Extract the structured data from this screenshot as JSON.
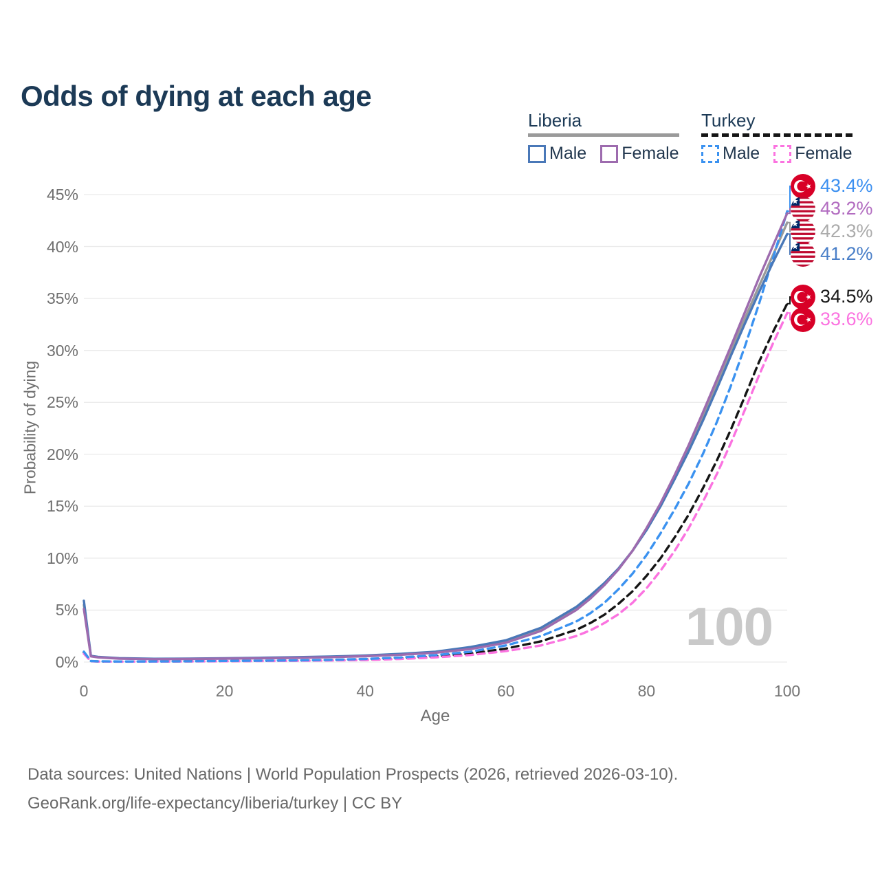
{
  "title": "Odds of dying at each age",
  "watermark": "100",
  "legend": {
    "groups": [
      {
        "name": "Liberia",
        "line_style": "solid",
        "underline_color": "#9a9a9a",
        "items": [
          {
            "label": "Male",
            "color": "#4a78b8"
          },
          {
            "label": "Female",
            "color": "#9d6bae"
          }
        ]
      },
      {
        "name": "Turkey",
        "line_style": "dashed",
        "underline_color": "#151515",
        "items": [
          {
            "label": "Male",
            "color": "#3b92f0"
          },
          {
            "label": "Female",
            "color": "#fb73e0"
          }
        ]
      }
    ]
  },
  "footer": {
    "line1": "Data sources: United Nations | World Population Prospects (2026, retrieved 2026-03-10).",
    "line2": "GeoRank.org/life-expectancy/liberia/turkey | CC BY"
  },
  "chart_data": {
    "type": "line",
    "title": "Odds of dying at each age",
    "xlabel": "Age",
    "ylabel": "Probability of dying",
    "xlim": [
      0,
      100
    ],
    "ylim": [
      0,
      45
    ],
    "grid": "horizontal",
    "legend_position": "top-right",
    "x_ticks": [
      {
        "v": 0,
        "label": "0"
      },
      {
        "v": 20,
        "label": "20"
      },
      {
        "v": 40,
        "label": "40"
      },
      {
        "v": 60,
        "label": "60"
      },
      {
        "v": 80,
        "label": "80"
      },
      {
        "v": 100,
        "label": "100"
      }
    ],
    "y_ticks": [
      {
        "v": 0,
        "label": "0%"
      },
      {
        "v": 5,
        "label": "5%"
      },
      {
        "v": 10,
        "label": "10%"
      },
      {
        "v": 15,
        "label": "15%"
      },
      {
        "v": 20,
        "label": "20%"
      },
      {
        "v": 25,
        "label": "25%"
      },
      {
        "v": 30,
        "label": "30%"
      },
      {
        "v": 35,
        "label": "35%"
      },
      {
        "v": 40,
        "label": "40%"
      },
      {
        "v": 45,
        "label": "45%"
      }
    ],
    "series": [
      {
        "id": "liberia-all",
        "country": "Liberia",
        "sex": "Both",
        "style": "solid",
        "color": "#9a9a9a",
        "label_color": "#ababab",
        "flag": "liberia-flag-icon",
        "end_label": "42.3%",
        "points": [
          [
            0,
            5.5
          ],
          [
            1,
            0.58
          ],
          [
            2,
            0.47
          ],
          [
            5,
            0.35
          ],
          [
            10,
            0.3
          ],
          [
            15,
            0.32
          ],
          [
            20,
            0.35
          ],
          [
            25,
            0.38
          ],
          [
            30,
            0.43
          ],
          [
            35,
            0.5
          ],
          [
            40,
            0.6
          ],
          [
            45,
            0.74
          ],
          [
            50,
            0.95
          ],
          [
            55,
            1.35
          ],
          [
            60,
            2.0
          ],
          [
            65,
            3.15
          ],
          [
            70,
            5.15
          ],
          [
            72,
            6.25
          ],
          [
            74,
            7.5
          ],
          [
            76,
            8.95
          ],
          [
            78,
            10.7
          ],
          [
            80,
            12.8
          ],
          [
            82,
            15.1
          ],
          [
            84,
            17.8
          ],
          [
            86,
            20.6
          ],
          [
            88,
            23.6
          ],
          [
            90,
            26.7
          ],
          [
            92,
            29.9
          ],
          [
            94,
            33.1
          ],
          [
            96,
            36.2
          ],
          [
            98,
            39.2
          ],
          [
            100,
            42.3
          ]
        ]
      },
      {
        "id": "turkey-all",
        "country": "Turkey",
        "sex": "Both",
        "style": "dashed",
        "color": "#151515",
        "label_color": "#1a1a1a",
        "flag": "turkey-flag-icon",
        "end_label": "34.5%",
        "points": [
          [
            0,
            0.9
          ],
          [
            1,
            0.09
          ],
          [
            2,
            0.06
          ],
          [
            5,
            0.045
          ],
          [
            10,
            0.05
          ],
          [
            15,
            0.07
          ],
          [
            20,
            0.09
          ],
          [
            25,
            0.11
          ],
          [
            30,
            0.14
          ],
          [
            35,
            0.18
          ],
          [
            40,
            0.25
          ],
          [
            45,
            0.36
          ],
          [
            50,
            0.55
          ],
          [
            55,
            0.82
          ],
          [
            60,
            1.3
          ],
          [
            65,
            2.0
          ],
          [
            70,
            3.1
          ],
          [
            72,
            3.75
          ],
          [
            74,
            4.55
          ],
          [
            76,
            5.6
          ],
          [
            78,
            6.8
          ],
          [
            80,
            8.3
          ],
          [
            82,
            10.0
          ],
          [
            84,
            12.0
          ],
          [
            86,
            14.2
          ],
          [
            88,
            16.7
          ],
          [
            90,
            19.4
          ],
          [
            92,
            22.4
          ],
          [
            94,
            25.6
          ],
          [
            96,
            28.9
          ],
          [
            98,
            31.8
          ],
          [
            100,
            34.5
          ]
        ]
      },
      {
        "id": "turkey-female",
        "country": "Turkey",
        "sex": "Female",
        "style": "dashed",
        "color": "#fb73e0",
        "label_color": "#fb73e0",
        "flag": "turkey-flag-icon",
        "end_label": "33.6%",
        "points": [
          [
            0,
            0.8
          ],
          [
            1,
            0.08
          ],
          [
            2,
            0.05
          ],
          [
            5,
            0.04
          ],
          [
            10,
            0.045
          ],
          [
            15,
            0.06
          ],
          [
            20,
            0.08
          ],
          [
            25,
            0.1
          ],
          [
            30,
            0.12
          ],
          [
            35,
            0.15
          ],
          [
            40,
            0.2
          ],
          [
            45,
            0.3
          ],
          [
            50,
            0.45
          ],
          [
            55,
            0.68
          ],
          [
            60,
            1.05
          ],
          [
            65,
            1.6
          ],
          [
            70,
            2.5
          ],
          [
            72,
            3.05
          ],
          [
            74,
            3.75
          ],
          [
            76,
            4.6
          ],
          [
            78,
            5.7
          ],
          [
            80,
            7.1
          ],
          [
            82,
            8.8
          ],
          [
            84,
            10.7
          ],
          [
            86,
            12.9
          ],
          [
            88,
            15.4
          ],
          [
            90,
            18.1
          ],
          [
            92,
            21.1
          ],
          [
            94,
            24.3
          ],
          [
            96,
            27.6
          ],
          [
            98,
            30.7
          ],
          [
            100,
            33.6
          ]
        ]
      },
      {
        "id": "turkey-male",
        "country": "Turkey",
        "sex": "Male",
        "style": "dashed",
        "color": "#3b92f0",
        "label_color": "#3b8ff0",
        "flag": "turkey-flag-icon",
        "end_label": "43.4%",
        "points": [
          [
            0,
            1.0
          ],
          [
            1,
            0.1
          ],
          [
            2,
            0.07
          ],
          [
            5,
            0.05
          ],
          [
            10,
            0.06
          ],
          [
            15,
            0.08
          ],
          [
            20,
            0.11
          ],
          [
            25,
            0.13
          ],
          [
            30,
            0.16
          ],
          [
            35,
            0.21
          ],
          [
            40,
            0.3
          ],
          [
            45,
            0.44
          ],
          [
            50,
            0.67
          ],
          [
            55,
            1.0
          ],
          [
            60,
            1.6
          ],
          [
            65,
            2.5
          ],
          [
            70,
            3.9
          ],
          [
            72,
            4.7
          ],
          [
            74,
            5.7
          ],
          [
            76,
            7.0
          ],
          [
            78,
            8.5
          ],
          [
            80,
            10.3
          ],
          [
            82,
            12.4
          ],
          [
            84,
            14.7
          ],
          [
            86,
            17.2
          ],
          [
            88,
            20.0
          ],
          [
            90,
            23.1
          ],
          [
            92,
            26.6
          ],
          [
            94,
            30.4
          ],
          [
            96,
            34.5
          ],
          [
            98,
            38.9
          ],
          [
            100,
            43.4
          ]
        ]
      },
      {
        "id": "liberia-male",
        "country": "Liberia",
        "sex": "Male",
        "style": "solid",
        "color": "#4a78b8",
        "label_color": "#4a7fc8",
        "flag": "liberia-flag-icon",
        "end_label": "41.2%",
        "points": [
          [
            0,
            5.9
          ],
          [
            1,
            0.6
          ],
          [
            2,
            0.5
          ],
          [
            5,
            0.38
          ],
          [
            10,
            0.32
          ],
          [
            15,
            0.34
          ],
          [
            20,
            0.37
          ],
          [
            25,
            0.41
          ],
          [
            30,
            0.46
          ],
          [
            35,
            0.53
          ],
          [
            40,
            0.63
          ],
          [
            45,
            0.79
          ],
          [
            50,
            1.0
          ],
          [
            55,
            1.45
          ],
          [
            60,
            2.1
          ],
          [
            65,
            3.3
          ],
          [
            70,
            5.3
          ],
          [
            72,
            6.4
          ],
          [
            74,
            7.6
          ],
          [
            76,
            9.0
          ],
          [
            78,
            10.7
          ],
          [
            80,
            12.7
          ],
          [
            82,
            15.0
          ],
          [
            84,
            17.6
          ],
          [
            86,
            20.3
          ],
          [
            88,
            23.2
          ],
          [
            90,
            26.3
          ],
          [
            92,
            29.5
          ],
          [
            94,
            32.6
          ],
          [
            96,
            35.6
          ],
          [
            98,
            38.5
          ],
          [
            100,
            41.2
          ]
        ]
      },
      {
        "id": "liberia-female",
        "country": "Liberia",
        "sex": "Female",
        "style": "solid",
        "color": "#9d6bae",
        "label_color": "#b26cc0",
        "flag": "liberia-flag-icon",
        "end_label": "43.2%",
        "points": [
          [
            0,
            5.1
          ],
          [
            1,
            0.55
          ],
          [
            2,
            0.45
          ],
          [
            5,
            0.33
          ],
          [
            10,
            0.28
          ],
          [
            15,
            0.3
          ],
          [
            20,
            0.33
          ],
          [
            25,
            0.36
          ],
          [
            30,
            0.4
          ],
          [
            35,
            0.47
          ],
          [
            40,
            0.56
          ],
          [
            45,
            0.7
          ],
          [
            50,
            0.9
          ],
          [
            55,
            1.25
          ],
          [
            60,
            1.85
          ],
          [
            65,
            3.0
          ],
          [
            70,
            5.0
          ],
          [
            72,
            6.1
          ],
          [
            74,
            7.4
          ],
          [
            76,
            8.9
          ],
          [
            78,
            10.7
          ],
          [
            80,
            12.9
          ],
          [
            82,
            15.3
          ],
          [
            84,
            18.0
          ],
          [
            86,
            20.9
          ],
          [
            88,
            24.0
          ],
          [
            90,
            27.2
          ],
          [
            92,
            30.4
          ],
          [
            94,
            33.7
          ],
          [
            96,
            37.0
          ],
          [
            98,
            40.1
          ],
          [
            100,
            43.2
          ]
        ]
      }
    ]
  }
}
